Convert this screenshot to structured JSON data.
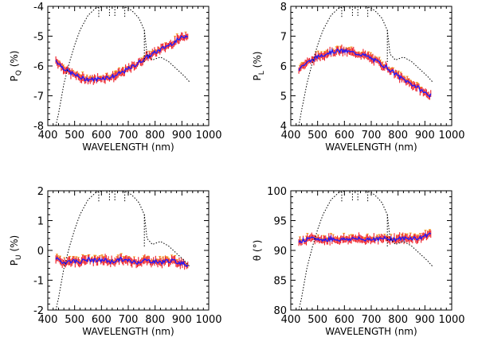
{
  "chart_data": [
    {
      "type": "line",
      "xlabel": "WAVELENGTH (nm)",
      "ylabel": {
        "main": "P",
        "sub": "Q",
        "unit": "(%)"
      },
      "xlim": [
        400,
        1000
      ],
      "ylim": [
        -8,
        -4
      ],
      "xticks": [
        400,
        500,
        600,
        700,
        800,
        900,
        1000
      ],
      "yticks": [
        -8,
        -7,
        -6,
        -5,
        -4
      ],
      "series": [
        {
          "style": "measured-red-blue",
          "x": [
            430,
            450,
            470,
            500,
            530,
            560,
            580,
            600,
            630,
            650,
            680,
            700,
            730,
            760,
            790,
            820,
            850,
            880,
            910,
            925
          ],
          "y": [
            -5.8,
            -6.0,
            -6.15,
            -6.3,
            -6.42,
            -6.45,
            -6.45,
            -6.4,
            -6.38,
            -6.33,
            -6.2,
            -6.1,
            -5.95,
            -5.75,
            -5.6,
            -5.45,
            -5.3,
            -5.15,
            -5.0,
            -4.95
          ]
        },
        {
          "style": "dotted-black",
          "x": [
            430,
            440,
            460,
            480,
            500,
            520,
            550,
            580,
            610,
            640,
            670,
            700,
            720,
            740,
            760,
            770,
            790,
            820,
            850,
            880,
            910,
            930
          ],
          "y": [
            -8.0,
            -7.6,
            -6.6,
            -5.9,
            -5.3,
            -4.8,
            -4.3,
            -4.05,
            -4.0,
            -4.0,
            -4.0,
            -4.05,
            -4.2,
            -4.4,
            -4.8,
            -5.6,
            -5.8,
            -5.7,
            -5.85,
            -6.1,
            -6.35,
            -6.55
          ]
        }
      ]
    },
    {
      "type": "line",
      "xlabel": "WAVELENGTH (nm)",
      "ylabel": {
        "main": "P",
        "sub": "L",
        "unit": "(%)"
      },
      "xlim": [
        400,
        1000
      ],
      "ylim": [
        4,
        8
      ],
      "xticks": [
        400,
        500,
        600,
        700,
        800,
        900,
        1000
      ],
      "yticks": [
        4,
        5,
        6,
        7,
        8
      ],
      "series": [
        {
          "style": "measured-red-blue",
          "x": [
            430,
            450,
            480,
            510,
            540,
            570,
            600,
            630,
            660,
            690,
            720,
            750,
            780,
            810,
            840,
            870,
            900,
            925
          ],
          "y": [
            5.9,
            6.05,
            6.2,
            6.35,
            6.45,
            6.5,
            6.5,
            6.45,
            6.4,
            6.3,
            6.15,
            6.0,
            5.8,
            5.6,
            5.45,
            5.3,
            5.1,
            5.0
          ]
        },
        {
          "style": "dotted-black",
          "x": [
            430,
            440,
            460,
            480,
            500,
            520,
            550,
            580,
            610,
            640,
            670,
            700,
            720,
            740,
            760,
            770,
            790,
            820,
            850,
            880,
            910,
            930
          ],
          "y": [
            4.0,
            4.5,
            5.4,
            6.1,
            6.7,
            7.2,
            7.7,
            7.95,
            8.0,
            8.0,
            8.0,
            7.95,
            7.8,
            7.6,
            7.2,
            6.4,
            6.2,
            6.3,
            6.15,
            5.9,
            5.65,
            5.45
          ]
        }
      ]
    },
    {
      "type": "line",
      "xlabel": "WAVELENGTH (nm)",
      "ylabel": {
        "main": "P",
        "sub": "U",
        "unit": "(%)"
      },
      "xlim": [
        400,
        1000
      ],
      "ylim": [
        -2,
        2
      ],
      "xticks": [
        400,
        500,
        600,
        700,
        800,
        900,
        1000
      ],
      "yticks": [
        -2,
        -1,
        0,
        1,
        2
      ],
      "series": [
        {
          "style": "measured-red-blue",
          "x": [
            430,
            460,
            490,
            520,
            550,
            580,
            610,
            640,
            670,
            700,
            730,
            760,
            790,
            820,
            850,
            880,
            910,
            925
          ],
          "y": [
            -0.3,
            -0.4,
            -0.35,
            -0.38,
            -0.3,
            -0.35,
            -0.32,
            -0.38,
            -0.3,
            -0.35,
            -0.4,
            -0.33,
            -0.36,
            -0.4,
            -0.34,
            -0.38,
            -0.45,
            -0.5
          ]
        },
        {
          "style": "dotted-black",
          "x": [
            430,
            440,
            460,
            480,
            500,
            520,
            550,
            580,
            610,
            640,
            670,
            700,
            720,
            740,
            760,
            770,
            790,
            820,
            850,
            880,
            910,
            930
          ],
          "y": [
            -2.0,
            -1.6,
            -0.6,
            0.1,
            0.7,
            1.2,
            1.7,
            1.95,
            2.0,
            2.0,
            2.0,
            1.95,
            1.8,
            1.6,
            1.2,
            0.4,
            0.2,
            0.3,
            0.15,
            -0.1,
            -0.35,
            -0.55
          ]
        }
      ]
    },
    {
      "type": "line",
      "xlabel": "WAVELENGTH (nm)",
      "ylabel": {
        "main": "θ",
        "sub": "",
        "unit": "(°)"
      },
      "xlim": [
        400,
        1000
      ],
      "ylim": [
        80,
        100
      ],
      "xticks": [
        400,
        500,
        600,
        700,
        800,
        900,
        1000
      ],
      "yticks": [
        80,
        85,
        90,
        95,
        100
      ],
      "series": [
        {
          "style": "measured-red-blue",
          "x": [
            430,
            460,
            490,
            520,
            550,
            580,
            610,
            640,
            670,
            700,
            730,
            760,
            790,
            820,
            850,
            880,
            900,
            925
          ],
          "y": [
            91.5,
            91.8,
            92.0,
            91.7,
            92.0,
            91.8,
            91.9,
            92.0,
            91.8,
            92.0,
            91.9,
            92.0,
            91.9,
            92.0,
            92.1,
            92.0,
            92.5,
            92.8
          ]
        },
        {
          "style": "dotted-black",
          "x": [
            430,
            440,
            460,
            480,
            500,
            520,
            550,
            580,
            610,
            640,
            670,
            700,
            720,
            740,
            760,
            770,
            790,
            820,
            850,
            880,
            910,
            930
          ],
          "y": [
            80.0,
            82.0,
            87.0,
            90.5,
            93.5,
            96.0,
            98.5,
            99.75,
            100.0,
            100.0,
            100.0,
            99.75,
            99.0,
            98.0,
            96.0,
            92.0,
            91.0,
            91.5,
            90.75,
            89.5,
            88.25,
            87.25
          ]
        }
      ]
    }
  ]
}
